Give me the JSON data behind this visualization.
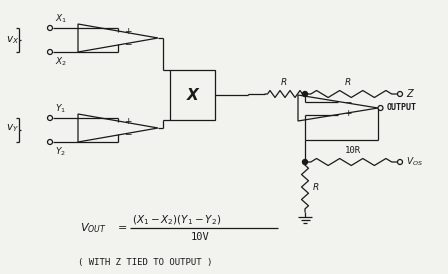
{
  "bg_color": "#f2f2ee",
  "line_color": "#1a1a1a",
  "fig_w": 4.48,
  "fig_h": 2.74,
  "dpi": 100,
  "vx_label": "V_X",
  "vy_label": "V_Y",
  "x1_label": "X_1",
  "x2_label": "X_2",
  "y1_label": "Y_1",
  "y2_label": "Y_2",
  "z_label": "Z",
  "output_label": "OUTPUT",
  "vos_label": "V_{OS}",
  "mult_label": "X",
  "r_label": "R",
  "r10_label": "10R",
  "formula_lhs": "V_{OUT}",
  "formula_eq": "=",
  "formula_num": "(X_1 - X_2)(Y_1 - Y_2)",
  "formula_den": "10V",
  "formula_note": "( WITH Z TIED TO OUTPUT )"
}
